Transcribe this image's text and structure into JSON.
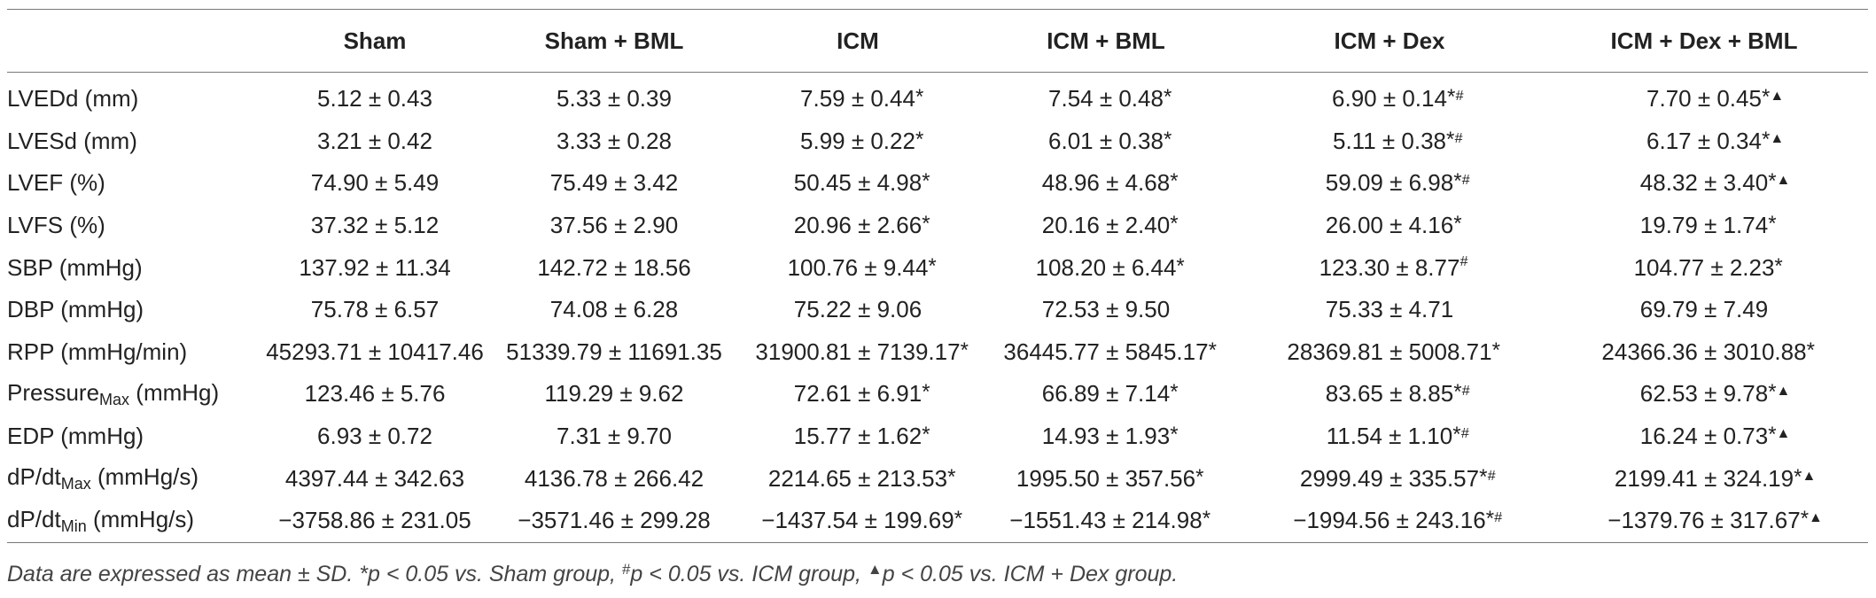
{
  "table": {
    "headers": [
      "",
      "Sham",
      "Sham + BML",
      "ICM",
      "ICM + BML",
      "ICM + Dex",
      "ICM + Dex + BML"
    ],
    "rows": [
      {
        "label": "LVEDd (mm)",
        "label_sub": "",
        "label_suffix": "",
        "cells": [
          {
            "value": "5.12 ± 0.43",
            "marks": ""
          },
          {
            "value": "5.33 ± 0.39",
            "marks": ""
          },
          {
            "value": "7.59 ± 0.44",
            "marks": "*"
          },
          {
            "value": "7.54 ± 0.48",
            "marks": "*"
          },
          {
            "value": "6.90 ± 0.14",
            "marks": "*#"
          },
          {
            "value": "7.70 ± 0.45",
            "marks": "*▲"
          }
        ]
      },
      {
        "label": "LVESd (mm)",
        "label_sub": "",
        "label_suffix": "",
        "cells": [
          {
            "value": "3.21 ± 0.42",
            "marks": ""
          },
          {
            "value": "3.33 ± 0.28",
            "marks": ""
          },
          {
            "value": "5.99 ± 0.22",
            "marks": "*"
          },
          {
            "value": "6.01 ± 0.38",
            "marks": "*"
          },
          {
            "value": "5.11 ± 0.38",
            "marks": "*#"
          },
          {
            "value": "6.17 ± 0.34",
            "marks": "*▲"
          }
        ]
      },
      {
        "label": "LVEF (%)",
        "label_sub": "",
        "label_suffix": "",
        "cells": [
          {
            "value": "74.90 ± 5.49",
            "marks": ""
          },
          {
            "value": "75.49 ± 3.42",
            "marks": ""
          },
          {
            "value": "50.45 ± 4.98",
            "marks": "*"
          },
          {
            "value": "48.96 ± 4.68",
            "marks": "*"
          },
          {
            "value": "59.09 ± 6.98",
            "marks": "*#"
          },
          {
            "value": "48.32 ± 3.40",
            "marks": "*▲"
          }
        ]
      },
      {
        "label": "LVFS (%)",
        "label_sub": "",
        "label_suffix": "",
        "cells": [
          {
            "value": "37.32 ± 5.12",
            "marks": ""
          },
          {
            "value": "37.56 ± 2.90",
            "marks": ""
          },
          {
            "value": "20.96 ± 2.66",
            "marks": "*"
          },
          {
            "value": "20.16 ± 2.40",
            "marks": "*"
          },
          {
            "value": "26.00 ± 4.16",
            "marks": "*"
          },
          {
            "value": "19.79 ± 1.74",
            "marks": "*"
          }
        ]
      },
      {
        "label": "SBP (mmHg)",
        "label_sub": "",
        "label_suffix": "",
        "cells": [
          {
            "value": "137.92 ± 11.34",
            "marks": ""
          },
          {
            "value": "142.72 ± 18.56",
            "marks": ""
          },
          {
            "value": "100.76 ± 9.44",
            "marks": "*"
          },
          {
            "value": "108.20 ± 6.44",
            "marks": "*"
          },
          {
            "value": "123.30 ± 8.77",
            "marks": "#"
          },
          {
            "value": "104.77 ± 2.23",
            "marks": "*"
          }
        ]
      },
      {
        "label": "DBP (mmHg)",
        "label_sub": "",
        "label_suffix": "",
        "cells": [
          {
            "value": "75.78 ± 6.57",
            "marks": ""
          },
          {
            "value": "74.08 ± 6.28",
            "marks": ""
          },
          {
            "value": "75.22 ± 9.06",
            "marks": ""
          },
          {
            "value": "72.53 ± 9.50",
            "marks": ""
          },
          {
            "value": "75.33 ± 4.71",
            "marks": ""
          },
          {
            "value": "69.79 ± 7.49",
            "marks": ""
          }
        ]
      },
      {
        "label": "RPP (mmHg/min)",
        "label_sub": "",
        "label_suffix": "",
        "cells": [
          {
            "value": "45293.71 ± 10417.46",
            "marks": ""
          },
          {
            "value": "51339.79 ± 11691.35",
            "marks": ""
          },
          {
            "value": "31900.81 ± 7139.17",
            "marks": "*"
          },
          {
            "value": "36445.77 ± 5845.17",
            "marks": "*"
          },
          {
            "value": "28369.81 ± 5008.71",
            "marks": "*"
          },
          {
            "value": "24366.36 ± 3010.88",
            "marks": "*"
          }
        ]
      },
      {
        "label": "Pressure",
        "label_sub": "Max",
        "label_suffix": " (mmHg)",
        "cells": [
          {
            "value": "123.46 ± 5.76",
            "marks": ""
          },
          {
            "value": "119.29 ± 9.62",
            "marks": ""
          },
          {
            "value": "72.61 ± 6.91",
            "marks": "*"
          },
          {
            "value": "66.89 ± 7.14",
            "marks": "*"
          },
          {
            "value": "83.65 ± 8.85",
            "marks": "*#"
          },
          {
            "value": "62.53 ± 9.78",
            "marks": "*▲"
          }
        ]
      },
      {
        "label": "EDP (mmHg)",
        "label_sub": "",
        "label_suffix": "",
        "cells": [
          {
            "value": "6.93 ± 0.72",
            "marks": ""
          },
          {
            "value": "7.31 ± 9.70",
            "marks": ""
          },
          {
            "value": "15.77 ± 1.62",
            "marks": "*"
          },
          {
            "value": "14.93 ± 1.93",
            "marks": "*"
          },
          {
            "value": "11.54 ± 1.10",
            "marks": "*#"
          },
          {
            "value": "16.24 ± 0.73",
            "marks": "*▲"
          }
        ]
      },
      {
        "label": "dP/dt",
        "label_sub": "Max",
        "label_suffix": " (mmHg/s)",
        "cells": [
          {
            "value": "4397.44 ± 342.63",
            "marks": ""
          },
          {
            "value": "4136.78 ± 266.42",
            "marks": ""
          },
          {
            "value": "2214.65 ± 213.53",
            "marks": "*"
          },
          {
            "value": "1995.50 ± 357.56",
            "marks": "*"
          },
          {
            "value": "2999.49 ± 335.57",
            "marks": "*#"
          },
          {
            "value": "2199.41 ± 324.19",
            "marks": "*▲"
          }
        ]
      },
      {
        "label": "dP/dt",
        "label_sub": "Min",
        "label_suffix": " (mmHg/s)",
        "cells": [
          {
            "value": "−3758.86 ± 231.05",
            "marks": ""
          },
          {
            "value": "−3571.46 ± 299.28",
            "marks": ""
          },
          {
            "value": "−1437.54 ± 199.69",
            "marks": "*"
          },
          {
            "value": "−1551.43 ± 214.98",
            "marks": "*"
          },
          {
            "value": "−1994.56 ± 243.16",
            "marks": "*#"
          },
          {
            "value": "−1379.76 ± 317.67",
            "marks": "*▲"
          }
        ]
      }
    ]
  },
  "footnote": {
    "part1": "Data are expressed as mean ± SD. *p < 0.05 vs. Sham group, ",
    "hash": "#",
    "part2": "p < 0.05 vs. ICM group, ",
    "tri": "▲",
    "part3": "p < 0.05 vs. ICM + Dex group."
  }
}
